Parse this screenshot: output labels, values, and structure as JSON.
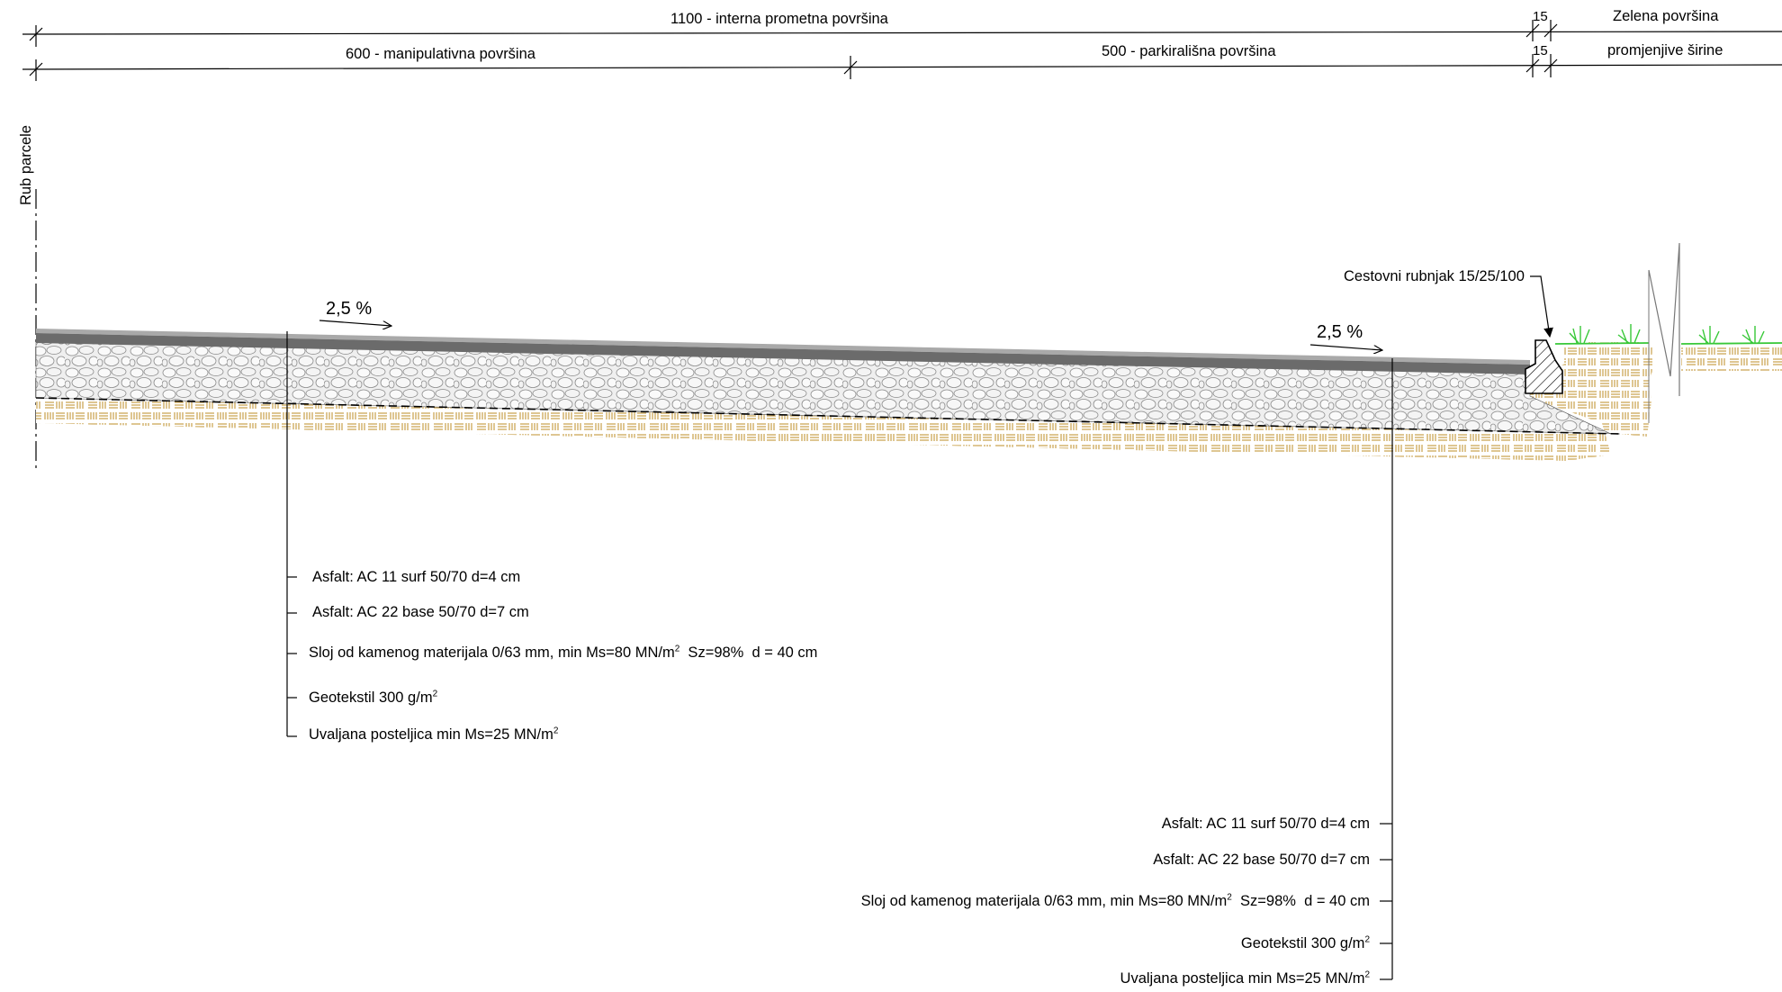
{
  "dimensions": {
    "interna_prometna": "1100 - interna prometna površina",
    "manipulativna": "600 - manipulativna površina",
    "parkiralisna": "500 - parkirališna površina",
    "curb_width_top": "15",
    "curb_width_bottom": "15",
    "zelena_line1": "Zelena površina",
    "zelena_line2": "promjenjive širine"
  },
  "rub_parcele": "Rub parcele",
  "curb_label": "Cestovni rubnjak 15/25/100",
  "slope_left": "2,5 %",
  "slope_right": "2,5 %",
  "layers_left": [
    {
      "text": "Asfalt: AC 11 surf 50/70   d=4 cm",
      "sup": "",
      "tail": ""
    },
    {
      "text": "Asfalt: AC 22 base 50/70   d=7 cm",
      "sup": "",
      "tail": ""
    },
    {
      "text": "Sloj od kamenog materijala 0/63 mm, min Ms=80 MN/m",
      "sup": "2",
      "tail": "  Sz=98%  d = 40 cm"
    },
    {
      "text": "Geotekstil 300 g/m",
      "sup": "2",
      "tail": ""
    },
    {
      "text": "Uvaljana posteljica min Ms=25 MN/m",
      "sup": "2",
      "tail": ""
    }
  ],
  "layers_right": [
    {
      "text": "Asfalt: AC 11 surf 50/70   d=4 cm",
      "sup": "",
      "tail": ""
    },
    {
      "text": "Asfalt: AC 22 base 50/70   d=7 cm",
      "sup": "",
      "tail": ""
    },
    {
      "text": "Sloj od kamenog materijala 0/63 mm, min Ms=80 MN/m",
      "sup": "2",
      "tail": "  Sz=98%  d = 40 cm"
    },
    {
      "text": "Geotekstil 300 g/m",
      "sup": "2",
      "tail": ""
    },
    {
      "text": "Uvaljana posteljica min Ms=25 MN/m",
      "sup": "2",
      "tail": ""
    }
  ],
  "colors": {
    "asphalt_top": "#a9a9a9",
    "asphalt_bottom": "#6b6b6b",
    "gravel": "#e6e6e6",
    "soil": "#c9a04a",
    "grass": "#38c838"
  }
}
